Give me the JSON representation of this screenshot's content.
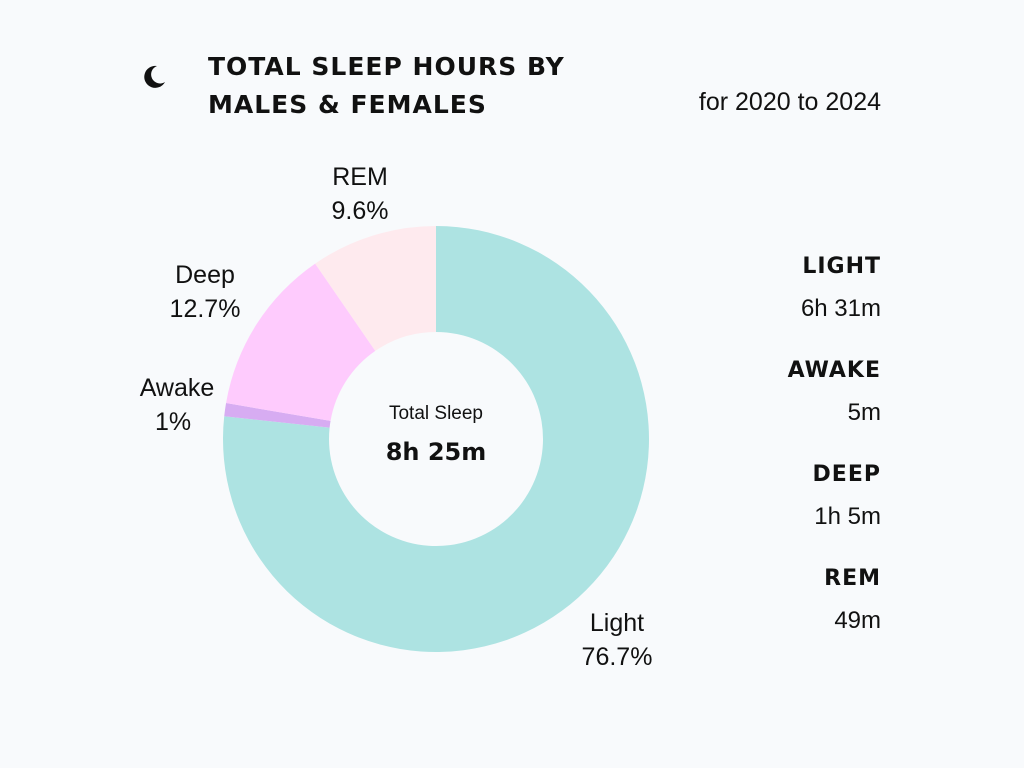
{
  "header": {
    "title_line1": "TOTAL SLEEP HOURS BY",
    "title_line2": "MALES & FEMALES",
    "subtitle": "for 2020 to 2024",
    "icon": "moon-icon"
  },
  "center": {
    "title": "Total Sleep",
    "value": "8h 25m"
  },
  "legend": [
    {
      "name": "LIGHT",
      "value": "6h 31m"
    },
    {
      "name": "AWAKE",
      "value": "5m"
    },
    {
      "name": "DEEP",
      "value": "1h 5m"
    },
    {
      "name": "REM",
      "value": "49m"
    }
  ],
  "chart_data": {
    "type": "pie",
    "donut": true,
    "title": "TOTAL SLEEP HOURS BY MALES & FEMALES",
    "subtitle": "for 2020 to 2024",
    "categories": [
      "Light",
      "Awake",
      "Deep",
      "REM"
    ],
    "values": [
      76.7,
      1,
      12.7,
      9.6
    ],
    "value_labels": [
      "76.7%",
      "1%",
      "12.7%",
      "9.6%"
    ],
    "colors": [
      "#ade3e2",
      "#d7acf2",
      "#fecbfd",
      "#feeaee"
    ],
    "center_label": "Total Sleep",
    "center_value": "8h 25m"
  }
}
